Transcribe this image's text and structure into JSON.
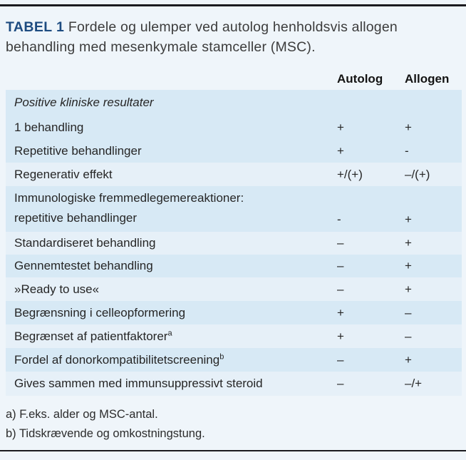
{
  "title": {
    "tag": "TABEL 1",
    "text": "Fordele og ulemper ved autolog henholdsvis allogen behandling med mesenkymale stamceller (MSC)."
  },
  "columns": {
    "autolog": "Autolog",
    "allogen": "Allogen"
  },
  "rows": [
    {
      "label": "Positive kliniske resultater",
      "sup": "",
      "autolog": "",
      "allogen": ""
    },
    {
      "label": "1 behandling",
      "sup": "",
      "autolog": "+",
      "allogen": "+"
    },
    {
      "label": "Repetitive behandlinger",
      "sup": "",
      "autolog": "+",
      "allogen": "-"
    },
    {
      "label": "Regenerativ effekt",
      "sup": "",
      "autolog": "+/(+)",
      "allogen": "–/(+)"
    },
    {
      "label": "Immunologiske fremmedlegemereaktioner:",
      "label2": "repetitive behandlinger",
      "sup": "",
      "autolog": "-",
      "allogen": "+"
    },
    {
      "label": "Standardiseret behandling",
      "sup": "",
      "autolog": "–",
      "allogen": "+"
    },
    {
      "label": "Gennemtestet behandling",
      "sup": "",
      "autolog": "–",
      "allogen": "+"
    },
    {
      "label": "»Ready to use«",
      "sup": "",
      "autolog": "–",
      "allogen": "+"
    },
    {
      "label": "Begrænsning i celleopformering",
      "sup": "",
      "autolog": "+",
      "allogen": "–"
    },
    {
      "label": "Begrænset af patientfaktorer",
      "sup": "a",
      "autolog": "+",
      "allogen": "–"
    },
    {
      "label": "Fordel af donorkompatibilitetscreening",
      "sup": "b",
      "autolog": "–",
      "allogen": "+"
    },
    {
      "label": "Gives sammen med immunsuppressivt steroid",
      "sup": "",
      "autolog": "–",
      "allogen": "–/+"
    }
  ],
  "footnotes": [
    "a) F.eks. alder og MSC-antal.",
    "b) Tidskrævende og omkostningstung."
  ],
  "colors": {
    "page_bg": "#eff5fa",
    "row_shaded": "#d7e9f5",
    "row_light": "#e6f0f8",
    "title_accent": "#1d4b80",
    "rule": "#1b1b1f"
  }
}
